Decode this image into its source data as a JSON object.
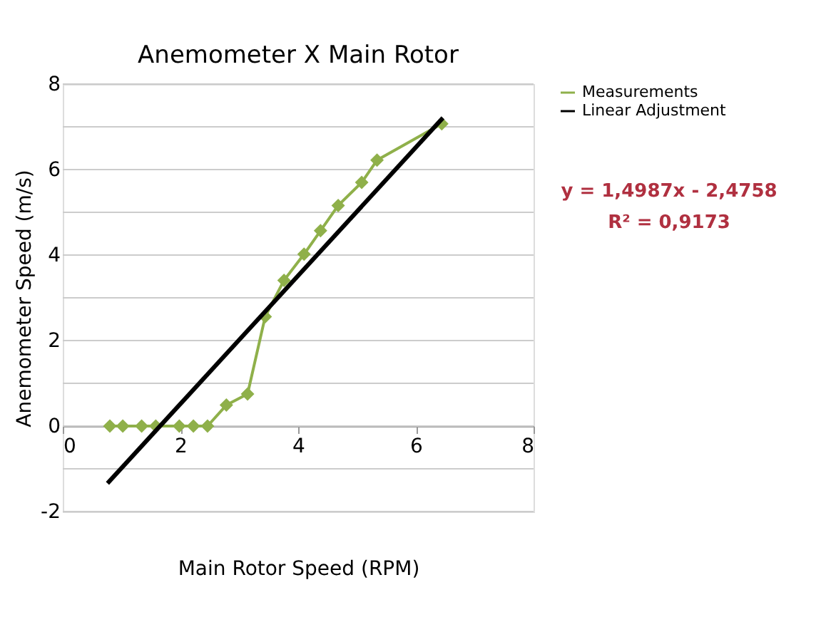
{
  "chart_data": {
    "type": "line",
    "title": "Anemometer X Main Rotor",
    "xlabel": "Main Rotor Speed (RPM)",
    "ylabel": "Anemometer Speed (m/s)",
    "series": [
      {
        "name": "Measurements",
        "color": "#8fb04a",
        "marker": "diamond",
        "x": [
          0.8,
          1.02,
          1.34,
          1.58,
          1.98,
          2.22,
          2.46,
          2.78,
          3.14,
          3.44,
          3.76,
          4.1,
          4.38,
          4.68,
          5.08,
          5.34,
          6.44
        ],
        "values": [
          0,
          0,
          0,
          0,
          0,
          0,
          0,
          0.49,
          0.75,
          2.56,
          3.41,
          4.02,
          4.57,
          5.16,
          5.7,
          6.22,
          7.07
        ]
      },
      {
        "name": "Linear Adjustment",
        "color": "#000000",
        "marker": "none",
        "x": [
          0.76,
          6.46
        ],
        "values": [
          -1.34,
          7.21
        ]
      }
    ],
    "xlim": [
      0,
      8
    ],
    "xticks": [
      0,
      2,
      4,
      6,
      8
    ],
    "ylim": [
      -2,
      8
    ],
    "yticks": [
      -2,
      {
        "value": -1,
        "label": null
      },
      0,
      {
        "value": 1,
        "label": null
      },
      2,
      {
        "value": 3,
        "label": null
      },
      4,
      {
        "value": 5,
        "label": null
      },
      6,
      {
        "value": 7,
        "label": null
      },
      8
    ],
    "grid": "y",
    "legend": "right",
    "annotations": [
      "y = 1,4987x - 2,4758",
      "R² = 0,9173"
    ]
  }
}
